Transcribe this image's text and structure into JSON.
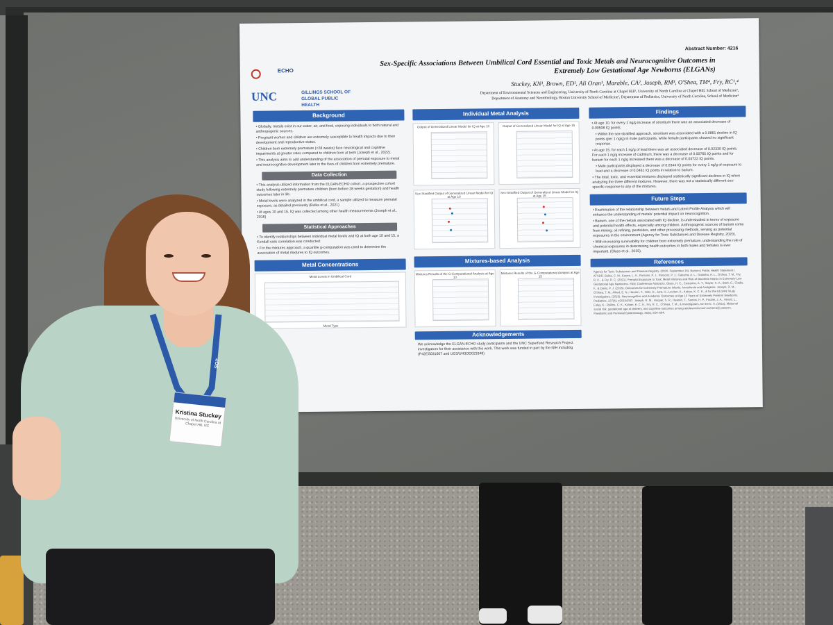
{
  "poster": {
    "abstract_number": "Abstract Number: 4216",
    "title_line1": "Sex-Specific Associations Between Umbilical Cord Essential and Toxic Metals and Neurocognitive Outcomes in",
    "title_line2": "Extremely Low Gestational Age Newborns (ELGANs)",
    "authors": "Stuckey, KN¹, Brown, ED¹, Ali Oran¹, Marable, CA², Joseph, RM³, O'Shea, TM⁴, Fry, RC¹,⁴",
    "affiliation_line1": "Department of Environmental Sciences and Engineering, University of North Carolina at Chapel Hill¹, University of North Carolina at Chapel Hill, School of Medicine²,",
    "affiliation_line2": "Department of Anatomy and Neurobiology, Boston University School of Medicine³, Department of Pediatrics, University of North Carolina, School of Medicine⁴",
    "logo_unc": "UNC",
    "logo_gillings": "GILLINGS SCHOOL OF GLOBAL PUBLIC HEALTH",
    "logo_echo": "ECHO",
    "sections": {
      "background": "Background",
      "data_collection": "Data Collection",
      "statistical": "Statistical Approaches",
      "metal_conc": "Metal Concentrations",
      "individual": "Individual Metal Analysis",
      "mixtures": "Mixtures-based Analysis",
      "ack": "Acknowledgements",
      "findings": "Findings",
      "future": "Future Steps",
      "references": "References"
    },
    "background_text": [
      "• Globally, metals exist in our water, air, and food, exposing individuals to both natural and anthropogenic sources.",
      "• Pregnant women and children are extremely susceptible to health impacts due to their development and reproductive status.",
      "• Children born extremely premature (<28 weeks) face neurological and cognitive impairments at greater rates compared to children born at term (Joseph et al., 2022).",
      "• This analysis aims to add understanding of the association of prenatal exposure to metal and neurocognitive development later in the lives of children born extremely premature."
    ],
    "data_text": [
      "• This analysis utilized information from the ELGAN-ECHO cohort, a prospective cohort study following extremely premature children (born before 28 weeks gestation) and health outcomes later in life.",
      "• Metal levels were analyzed in the umbilical cord, a sample utilized to measure prenatal exposure, as detailed previously (Bulka et al., 2021)",
      "• At ages 10 and 15, IQ was collected among other health measurements (Joseph et al., 2016)"
    ],
    "stat_text": [
      "• To identify relationships between individual metal levels and IQ at both age 10 and 15, a Kendall rank correlation was conducted.",
      "• For the mixtures approach, a quantile g-computation was used to determine the association of metal mixtures to IQ outcomes."
    ],
    "metal_fig_title": "Metal Levels in Umbilical Cord",
    "metal_fig_xlabel": "Metal Type",
    "ack_text": "We acknowledge the ELGAN-ECHO study participants and the UNC Superfund Research Project investigators for their assistance with this work. This work was funded in part by the NIH including (P42ES031007 and UG3/UH3OD023348)",
    "fig1_title": "Output of Generalized Linear Model for IQ at Age 10",
    "fig2_title": "Output of Generalized Linear Model for IQ at Age 15",
    "fig3_title": "Sex-Stratified Output of Generalized Linear Model for IQ at Age 10",
    "fig4_title": "Sex-Stratified Output of Generalized Linear Model for IQ at Age 15",
    "fig5_title": "Mixtures Results of the G-Computational Analysis at Age 10",
    "fig6_title": "Mixtures Results of the G-Computational Analysis at Age 15",
    "findings_text": [
      "• At age 10, for every 1 ng/g increase of strontium there was an associated decrease of 0.00508 IQ points.",
      "  • Within the sex-stratified approach, strontium was associated with a 0.0861 decline in IQ points (per 1 ng/g) in male participants, while female participants showed no significant response.",
      "• At age 15, for each 1 ng/g of lead there was an associated decrease of 0.02330 IQ points. For each 1 ng/g increase of cadmium, there was a decrease of 0.00765 IQ points and for barium for each 1 ng/g increased there was a decrease of 0.03722 IQ points.",
      "  • Male participants displayed a decrease of 0.0344 IQ points for every 1 ng/g of exposure to lead and a decrease of 0.0461 IQ points in relation to barium.",
      "• The total, toxic, and essential mixtures displayed statistically significant declines in IQ when analyzing the three different mixtures. However, there was not a statistically different sex-specific response to any of the mixtures."
    ],
    "future_text": [
      "• Examination of the relationship between metals and Latent Profile Analysis which will enhance the understanding of metals' potential impact on neurocognition.",
      "• Barium, one of the metals associated with IQ decline, is understudied in terms of exposure and potential health effects, especially among children. Anthropogenic sources of barium come from mining, oil refining, pesticides, and other processing methods, serving as potential exposures in the environment (Agency for Toxic Substances and Disease Registry, 2020).",
      "• With increasing survivability for children born extremely premature, understanding the role of chemical exposures in determining health outcomes in both males and females is ever important. (Glass et al., 2015)."
    ],
    "references_text": "Agency for Toxic Substances and Disease Registry. (2020, September 15). Barium | Public Health Statement | ATSDR. Bulka, C. M., Eaves, L. A., Parsons, P. J., Parsons, P. J., Galusha, A. L., Galusha, A. L., O'shea, T. M., Fry, R. C., & Fry, R. C. (2021). Prenatal Exposure to Toxic Metal Mixtures and Risk of Bacterial Sepsis in Extremely Low Gestational Age Newborns. ISEE Conference Abstracts. Glass, H. C., Costarino, A. T., Stayer, S. A., Brett, C., Cladis, F., & Davis, P. J. (2015). Outcomes for Extremely Premature Infants. Anesthesia and Analgesia. Joseph, R. M., O'Shea, T. M., Allred, E. N., Heeren, T., Hirtz, D., Jara, H., Leviton, A., Kuban, K. C. K., & for the ELGAN Study Investigators. (2016). Neurocognitive and Academic Outcomes at Age 10 Years of Extremely Preterm Newborns. Pediatrics, 137(4), e20154343. Joseph, R. M., Hooper, S. R., Heeren, T., Santos, H. P., Frazier, J. A., Venuti, L., Foley, K., Rollins, C. K., Kuban, K. C. K., Fry, R. C., O'Shea, T. M., & Investigators, for the E. S. (2022). Maternal social risk, gestational age at delivery, and cognitive outcomes among adolescents born extremely preterm. Paediatric and Perinatal Epidemiology, 36(5), 654–664."
  },
  "badge": {
    "name": "Kristina Stuckey",
    "org": "University of North Carolina at Chapel Hill, NC",
    "lanyard_text": "SOT"
  },
  "colors": {
    "section_header": "#2f63b4",
    "poster_bg": "#f4f5f7",
    "shirt": "#b9d3c6",
    "lanyard": "#2c5aa8"
  }
}
